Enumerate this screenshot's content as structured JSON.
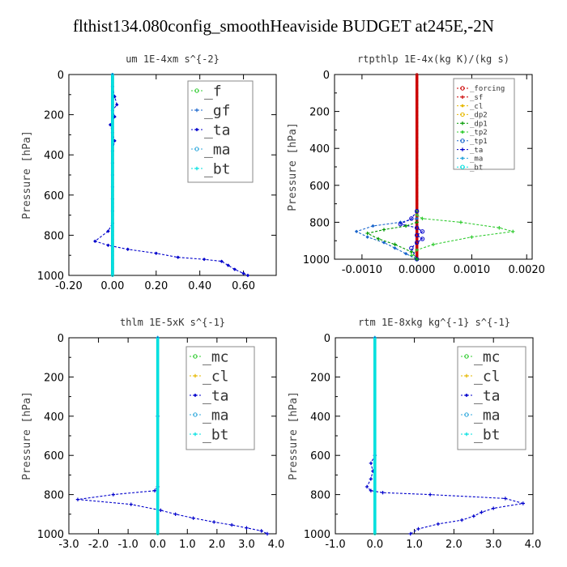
{
  "page_title": "flthist134.080config_smoothHeaviside  BUDGET at245E,-2N",
  "colors": {
    "forcing": "#cc0000",
    "sf": "#cc0000",
    "cl": "#e6b800",
    "dp2": "#e6b800",
    "dp1": "#009900",
    "tp2": "#33cc33",
    "tp1": "#1a66cc",
    "ta": "#0000cc",
    "ma": "#33aadd",
    "bt": "#00e0e0",
    "f": "#33cc33",
    "gf": "#1a66cc",
    "mc": "#33cc33"
  },
  "chart_data": [
    {
      "type": "line",
      "title": "um   1E-4xm s^{-2}",
      "ylabel": "Pressure [hPa]",
      "xlim": [
        -0.2,
        0.75
      ],
      "ylim": [
        1000,
        0
      ],
      "y_reversed": true,
      "xticks": [
        -0.2,
        0.0,
        0.2,
        0.4,
        0.6
      ],
      "xtick_labels": [
        "-0.20",
        "0.00",
        "0.20",
        "0.40",
        "0.60"
      ],
      "yticks": [
        0,
        200,
        400,
        600,
        800,
        1000
      ],
      "ytick_labels": [
        "0",
        "200",
        "400",
        "600",
        "800",
        "1000"
      ],
      "legend": [
        "_f",
        "_gf",
        "_ta",
        "_ma",
        "_bt"
      ],
      "legend_fontsize": 18,
      "series": [
        {
          "name": "_f",
          "color_key": "f",
          "style": "solid",
          "x": [
            0.0,
            0.0,
            0.0,
            0.0,
            0.0,
            0.0,
            0.0,
            0.0,
            0.0,
            0.0,
            0.0
          ],
          "y": [
            0,
            100,
            200,
            300,
            400,
            500,
            600,
            700,
            800,
            900,
            1000
          ]
        },
        {
          "name": "_gf",
          "color_key": "gf",
          "style": "solid",
          "x": [
            0.0,
            0.0,
            0.0,
            0.0,
            0.0,
            0.0,
            0.0,
            0.0,
            0.0,
            0.0,
            0.0
          ],
          "y": [
            0,
            100,
            200,
            300,
            400,
            500,
            600,
            700,
            800,
            900,
            1000
          ]
        },
        {
          "name": "_ta",
          "color_key": "ta",
          "style": "dashed",
          "x": [
            0.0,
            0.0,
            0.01,
            0.02,
            0.0,
            0.01,
            -0.01,
            0.0,
            0.01,
            0.0,
            0.0,
            0.0,
            0.0,
            0.0,
            0.0,
            0.0,
            -0.02,
            -0.08,
            -0.02,
            0.07,
            0.2,
            0.3,
            0.42,
            0.5,
            0.53,
            0.56,
            0.6,
            0.62
          ],
          "y": [
            0,
            60,
            110,
            150,
            180,
            210,
            250,
            290,
            330,
            380,
            440,
            500,
            560,
            620,
            680,
            740,
            780,
            830,
            850,
            870,
            890,
            910,
            920,
            930,
            950,
            970,
            990,
            1000
          ]
        },
        {
          "name": "_bt",
          "color_key": "bt",
          "style": "solid",
          "x": [
            0.0,
            0.0,
            0.0,
            0.0,
            0.0,
            0.0,
            0.0,
            0.0,
            0.0,
            0.0,
            0.0
          ],
          "y": [
            0,
            100,
            200,
            300,
            400,
            500,
            600,
            700,
            800,
            900,
            1000
          ]
        }
      ]
    },
    {
      "type": "line",
      "title": "rtpthlp   1E-4x(kg K)/(kg s)",
      "ylabel": "Pressure [hPa]",
      "xlim": [
        -0.0015,
        0.0021
      ],
      "ylim": [
        1000,
        0
      ],
      "y_reversed": true,
      "xticks": [
        -0.001,
        0.0,
        0.001,
        0.002
      ],
      "xtick_labels": [
        "-0.0010",
        "0.0000",
        "0.0010",
        "0.0020"
      ],
      "yticks": [
        0,
        200,
        400,
        600,
        800,
        1000
      ],
      "ytick_labels": [
        "0",
        "200",
        "400",
        "600",
        "800",
        "1000"
      ],
      "legend": [
        "_forcing",
        "_sf",
        "_cl",
        "_dp2",
        "_dp1",
        "_tp2",
        "_tp1",
        "_ta",
        "_ma",
        "_bt"
      ],
      "legend_fontsize": 9,
      "series": [
        {
          "name": "_forcing",
          "color_key": "forcing",
          "style": "solid",
          "x": [
            0.0,
            0.0,
            0.0,
            0.0,
            0.0,
            0.0,
            0.0,
            0.0,
            0.0,
            0.0,
            0.0
          ],
          "y": [
            0,
            100,
            200,
            300,
            400,
            500,
            600,
            700,
            800,
            900,
            1000
          ]
        },
        {
          "name": "_tp2",
          "color_key": "tp2",
          "style": "dashed",
          "x": [
            0.0,
            0.0,
            0.0001,
            0.0008,
            0.0015,
            0.00175,
            0.001,
            0.0003,
            0.0,
            -0.0001,
            0.0
          ],
          "y": [
            740,
            760,
            780,
            800,
            830,
            850,
            880,
            920,
            950,
            980,
            1000
          ]
        },
        {
          "name": "_tp1",
          "color_key": "tp1",
          "style": "dashed",
          "x": [
            0.0,
            -0.0003,
            -0.0008,
            -0.0011,
            -0.0009,
            -0.0006,
            -0.0004,
            -0.0002,
            0.0
          ],
          "y": [
            780,
            800,
            820,
            850,
            880,
            910,
            940,
            970,
            1000
          ]
        },
        {
          "name": "_ta",
          "color_key": "ta",
          "style": "dashed",
          "x": [
            0.0,
            -0.0001,
            -0.0003,
            0.0,
            0.0001,
            0.0,
            0.0001,
            0.0,
            -0.0001,
            0.0
          ],
          "y": [
            740,
            780,
            810,
            830,
            850,
            870,
            890,
            910,
            940,
            1000
          ]
        },
        {
          "name": "_dp1",
          "color_key": "dp1",
          "style": "dashed",
          "x": [
            0.0,
            -0.0002,
            -0.0006,
            -0.0009,
            -0.0007,
            -0.0004,
            -0.0001,
            0.0
          ],
          "y": [
            800,
            820,
            840,
            860,
            890,
            920,
            960,
            1000
          ]
        }
      ]
    },
    {
      "type": "line",
      "title": "thlm   1E-5xK s^{-1}",
      "ylabel": "Pressure [hPa]",
      "xlim": [
        -3.0,
        4.0
      ],
      "ylim": [
        1000,
        0
      ],
      "y_reversed": true,
      "xticks": [
        -3.0,
        -2.0,
        -1.0,
        0.0,
        1.0,
        2.0,
        3.0,
        4.0
      ],
      "xtick_labels": [
        "-3.0",
        "-2.0",
        "-1.0",
        "0.0",
        "1.0",
        "2.0",
        "3.0",
        "4.0"
      ],
      "yticks": [
        0,
        200,
        400,
        600,
        800,
        1000
      ],
      "ytick_labels": [
        "0",
        "200",
        "400",
        "600",
        "800",
        "1000"
      ],
      "legend": [
        "_mc",
        "_cl",
        "_ta",
        "_ma",
        "_bt"
      ],
      "legend_fontsize": 18,
      "series": [
        {
          "name": "_mc",
          "color_key": "mc",
          "style": "solid",
          "x": [
            0.0,
            0.0,
            0.0,
            0.0,
            0.0,
            0.0,
            0.0,
            0.0,
            0.0,
            0.0,
            0.0
          ],
          "y": [
            0,
            100,
            200,
            300,
            400,
            500,
            600,
            700,
            800,
            900,
            1000
          ]
        },
        {
          "name": "_ta",
          "color_key": "ta",
          "style": "dashed",
          "x": [
            0.0,
            0.0,
            0.0,
            -0.1,
            -1.5,
            -2.7,
            -0.9,
            0.1,
            0.6,
            1.2,
            1.9,
            2.5,
            3.0,
            3.5,
            3.7
          ],
          "y": [
            0,
            400,
            760,
            780,
            800,
            825,
            850,
            880,
            900,
            920,
            940,
            955,
            970,
            985,
            1000
          ]
        },
        {
          "name": "_bt",
          "color_key": "bt",
          "style": "solid",
          "x": [
            0.0,
            0.0,
            0.0,
            0.0,
            0.0,
            0.0,
            0.0,
            0.0,
            0.0,
            0.0,
            0.0
          ],
          "y": [
            0,
            100,
            200,
            300,
            400,
            500,
            600,
            700,
            800,
            900,
            1000
          ]
        }
      ]
    },
    {
      "type": "line",
      "title": "rtm   1E-8xkg kg^{-1} s^{-1}",
      "ylabel": "Pressure [hPa]",
      "xlim": [
        -1.0,
        4.0
      ],
      "ylim": [
        1000,
        0
      ],
      "y_reversed": true,
      "xticks": [
        -1.0,
        0.0,
        1.0,
        2.0,
        3.0,
        4.0
      ],
      "xtick_labels": [
        "-1.0",
        "0.0",
        "1.0",
        "2.0",
        "3.0",
        "4.0"
      ],
      "yticks": [
        0,
        200,
        400,
        600,
        800,
        1000
      ],
      "ytick_labels": [
        "0",
        "200",
        "400",
        "600",
        "800",
        "1000"
      ],
      "legend": [
        "_mc",
        "_cl",
        "_ta",
        "_ma",
        "_bt"
      ],
      "legend_fontsize": 18,
      "series": [
        {
          "name": "_mc",
          "color_key": "mc",
          "style": "solid",
          "x": [
            0.0,
            0.0,
            0.0,
            0.0,
            0.0,
            0.0,
            0.0,
            0.0,
            0.0,
            0.0,
            0.0
          ],
          "y": [
            0,
            100,
            200,
            300,
            400,
            500,
            600,
            700,
            800,
            900,
            1000
          ]
        },
        {
          "name": "_ta",
          "color_key": "ta",
          "style": "dashed",
          "x": [
            0.0,
            0.0,
            -0.1,
            -0.05,
            -0.1,
            -0.2,
            -0.1,
            0.2,
            1.4,
            3.3,
            3.75,
            3.0,
            2.7,
            2.5,
            2.2,
            1.6,
            1.1,
            0.9
          ],
          "y": [
            0,
            600,
            640,
            680,
            720,
            760,
            780,
            790,
            800,
            820,
            845,
            870,
            890,
            910,
            930,
            950,
            975,
            1000
          ]
        },
        {
          "name": "_bt",
          "color_key": "bt",
          "style": "solid",
          "x": [
            0.0,
            0.0,
            0.0,
            0.0,
            0.0,
            0.0,
            0.0,
            0.0,
            0.0,
            0.0,
            0.0
          ],
          "y": [
            0,
            100,
            200,
            300,
            400,
            500,
            600,
            700,
            800,
            900,
            1000
          ]
        }
      ]
    }
  ]
}
